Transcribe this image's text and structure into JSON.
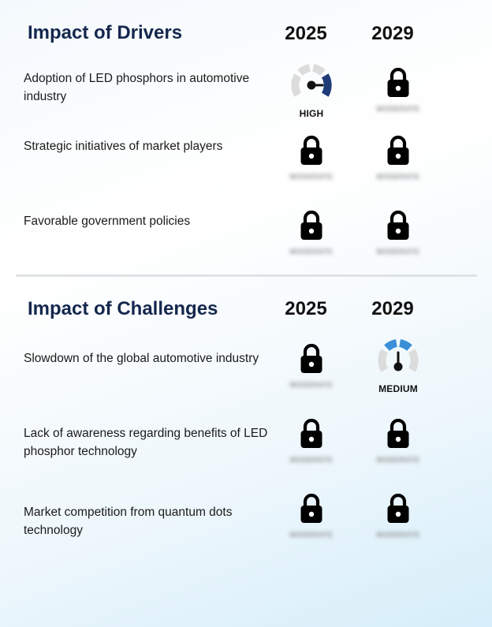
{
  "drivers": {
    "title": "Impact of Drivers",
    "years": [
      "2025",
      "2029"
    ],
    "rows": [
      {
        "label": "Adoption of LED phosphors in automotive industry",
        "y2025": {
          "state": "gauge",
          "level": "HIGH",
          "icon": "gauge-high-icon"
        },
        "y2029": {
          "state": "locked",
          "icon": "lock-icon",
          "hidden_text": "MODERATE"
        }
      },
      {
        "label": "Strategic initiatives of market players",
        "y2025": {
          "state": "locked",
          "icon": "lock-icon",
          "hidden_text": "MODERATE"
        },
        "y2029": {
          "state": "locked",
          "icon": "lock-icon",
          "hidden_text": "MODERATE"
        }
      },
      {
        "label": "Favorable government policies",
        "y2025": {
          "state": "locked",
          "icon": "lock-icon",
          "hidden_text": "MODERATE"
        },
        "y2029": {
          "state": "locked",
          "icon": "lock-icon",
          "hidden_text": "MODERATE"
        }
      }
    ]
  },
  "challenges": {
    "title": "Impact of Challenges",
    "years": [
      "2025",
      "2029"
    ],
    "rows": [
      {
        "label": "Slowdown of the global automotive industry",
        "y2025": {
          "state": "locked",
          "icon": "lock-icon",
          "hidden_text": "MODERATE"
        },
        "y2029": {
          "state": "gauge",
          "level": "MEDIUM",
          "icon": "gauge-medium-icon"
        }
      },
      {
        "label": "Lack of awareness regarding benefits of LED phosphor technology",
        "y2025": {
          "state": "locked",
          "icon": "lock-icon",
          "hidden_text": "MODERATE"
        },
        "y2029": {
          "state": "locked",
          "icon": "lock-icon",
          "hidden_text": "MODERATE"
        }
      },
      {
        "label": "Market competition from quantum dots technology",
        "y2025": {
          "state": "locked",
          "icon": "lock-icon",
          "hidden_text": "MODERATE"
        },
        "y2029": {
          "state": "locked",
          "icon": "lock-icon",
          "hidden_text": "MODERATE"
        }
      }
    ]
  },
  "colors": {
    "title": "#14274e",
    "gauge_track": "#dcdcdc",
    "gauge_high": "#1f3c78",
    "gauge_medium": "#3a8fd8",
    "needle": "#111111",
    "lock": "#000000"
  }
}
